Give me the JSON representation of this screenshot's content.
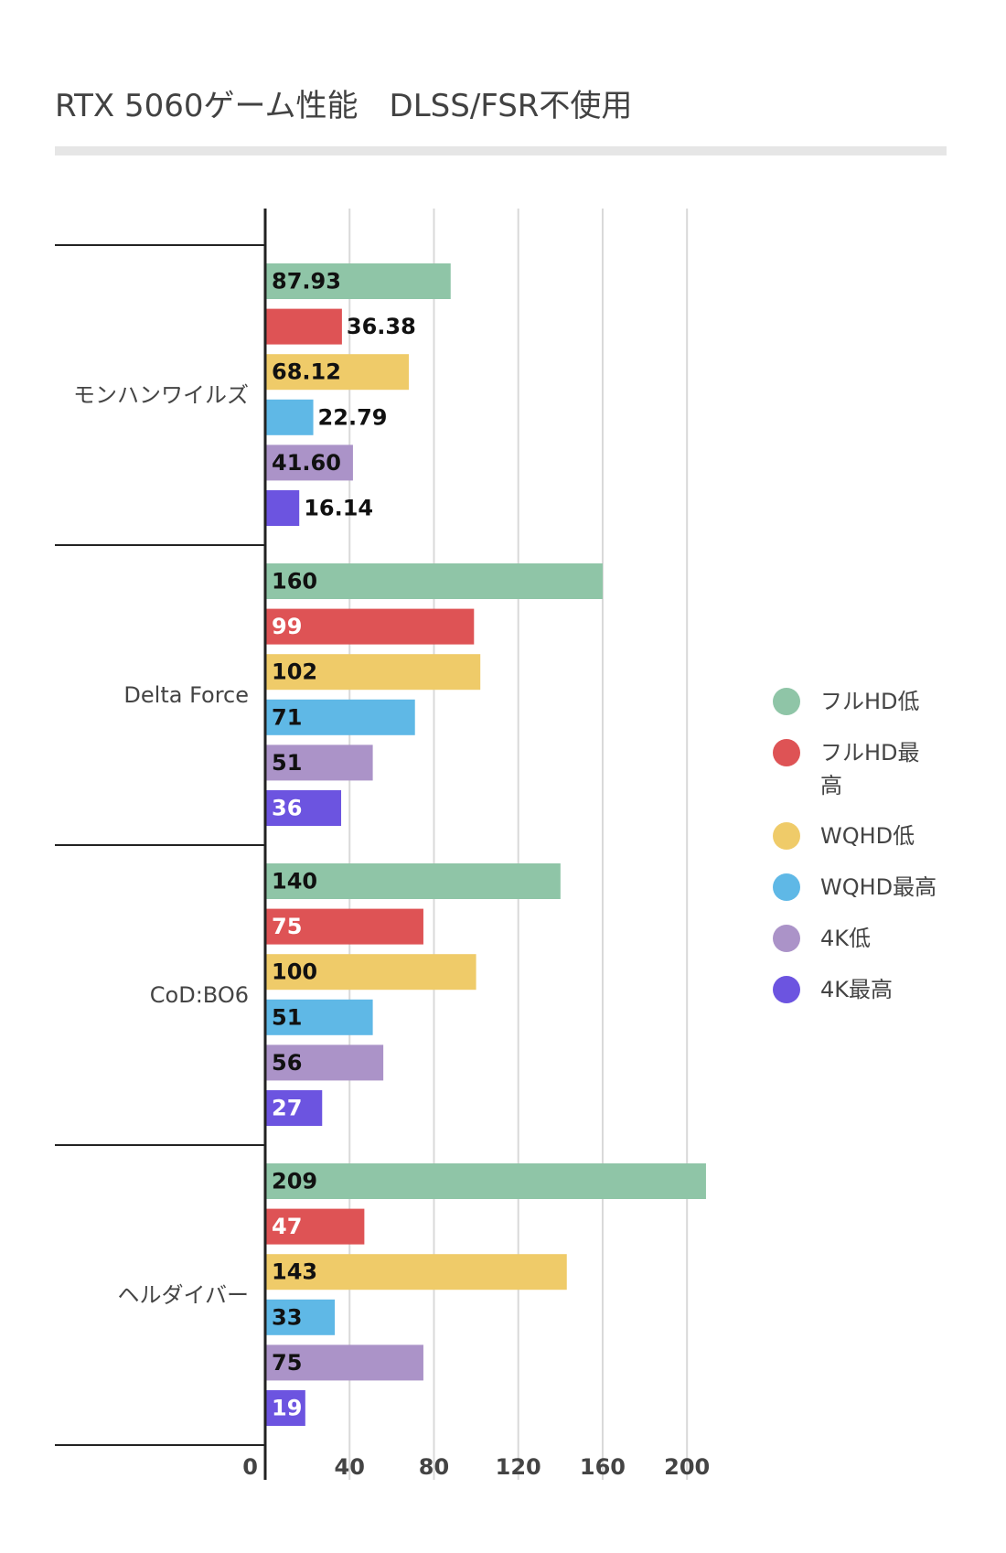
{
  "chart_data": {
    "type": "bar",
    "orientation": "horizontal",
    "title": "RTX 5060ゲーム性能　DLSS/FSR不使用",
    "xlabel": "",
    "ylabel": "",
    "xlim": [
      0,
      230
    ],
    "ticks": [
      0,
      40,
      80,
      120,
      160,
      200
    ],
    "tick_labels": [
      "0",
      "40",
      "80",
      "120",
      "160",
      "200"
    ],
    "grid": true,
    "legend_position": "right",
    "categories": [
      "モンハンワイルズ",
      "Delta Force",
      "CoD:BO6",
      "ヘルダイバー"
    ],
    "series": [
      {
        "name": "フルHD低",
        "color": "#8fc5a7",
        "values": [
          87.93,
          160,
          140,
          209
        ],
        "labels": [
          "87.93",
          "160",
          "140",
          "209"
        ],
        "label_color": "#111111"
      },
      {
        "name": "フルHD最高",
        "color": "#de5355",
        "values": [
          36.38,
          99,
          75,
          47
        ],
        "labels": [
          "36.38",
          "99",
          "75",
          "47"
        ],
        "label_color": "#ffffff"
      },
      {
        "name": "WQHD低",
        "color": "#efcb69",
        "values": [
          68.12,
          102,
          100,
          143
        ],
        "labels": [
          "68.12",
          "102",
          "100",
          "143"
        ],
        "label_color": "#111111"
      },
      {
        "name": "WQHD最高",
        "color": "#5fb8e6",
        "values": [
          22.79,
          71,
          51,
          33
        ],
        "labels": [
          "22.79",
          "71",
          "51",
          "33"
        ],
        "label_color": "#111111"
      },
      {
        "name": "4K低",
        "color": "#ab93c8",
        "values": [
          41.6,
          51,
          56,
          75
        ],
        "labels": [
          "41.60",
          "51",
          "56",
          "75"
        ],
        "label_color": "#111111"
      },
      {
        "name": "4K最高",
        "color": "#6c54e0",
        "values": [
          16.14,
          36,
          27,
          19
        ],
        "labels": [
          "16.14",
          "36",
          "27",
          "19"
        ],
        "label_color": "#ffffff"
      }
    ]
  }
}
